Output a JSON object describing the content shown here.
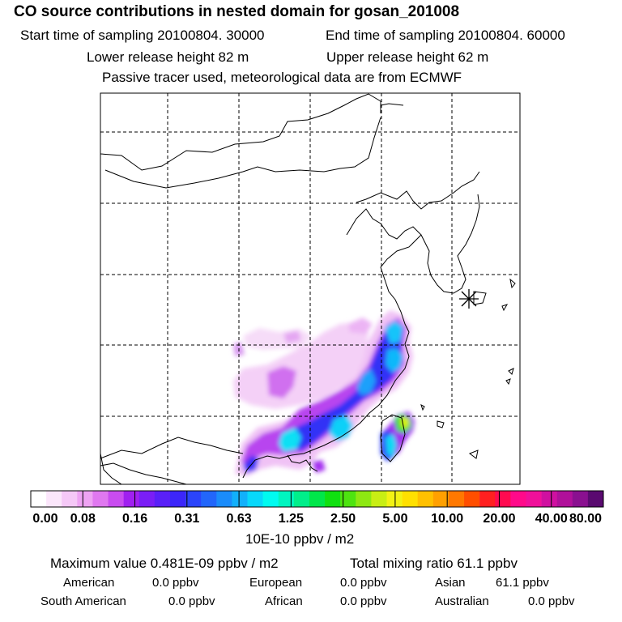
{
  "header": {
    "title": "CO  source contributions in nested domain for gosan_201008",
    "start_time": "Start time of sampling 20100804. 30000",
    "end_time": "End time of sampling 20100804. 60000",
    "lower_release": "Lower release height   82 m",
    "upper_release": "Upper release height   62 m",
    "tracer_note": "Passive tracer used, meteorological data are from ECMWF"
  },
  "colorbar": {
    "ticks": [
      "0.00",
      "0.08",
      "0.16",
      "0.31",
      "0.63",
      "1.25",
      "2.50",
      "5.00",
      "10.00",
      "20.00",
      "40.00",
      "80.00"
    ],
    "units": "10E-10 ppbv / m2",
    "colors": [
      "#ffffff",
      "#fbe6fb",
      "#f5c8f7",
      "#eea3f3",
      "#e078f0",
      "#c94cf0",
      "#a020f0",
      "#7a1ef6",
      "#5a20f8",
      "#3c26fa",
      "#2b44fb",
      "#2266fb",
      "#1a8cfb",
      "#12b0fb",
      "#08d8fb",
      "#00fbf0",
      "#00f5c0",
      "#00ee8a",
      "#00e64a",
      "#10e010",
      "#4ee410",
      "#8ee812",
      "#c8ee14",
      "#f2f214",
      "#ffe000",
      "#ffc000",
      "#ffa000",
      "#ff7800",
      "#ff4e00",
      "#ff2020",
      "#ff0a50",
      "#ff0a8a",
      "#f0109a",
      "#d010a0",
      "#b0109a",
      "#8a1090",
      "#5a0a70"
    ]
  },
  "summary": {
    "max_value": "Maximum value  0.481E-09 ppbv / m2",
    "total_mixing": "Total mixing ratio       61.1 ppbv",
    "american_label": "American",
    "american_value": "0.0 ppbv",
    "european_label": "European",
    "european_value": "0.0 ppbv",
    "asian_label": "Asian",
    "asian_value": "61.1 ppbv",
    "south_american_label": "South American",
    "south_american_value": "0.0 ppbv",
    "african_label": "African",
    "african_value": "0.0 ppbv",
    "australian_label": "Australian",
    "australian_value": "0.0 ppbv"
  }
}
